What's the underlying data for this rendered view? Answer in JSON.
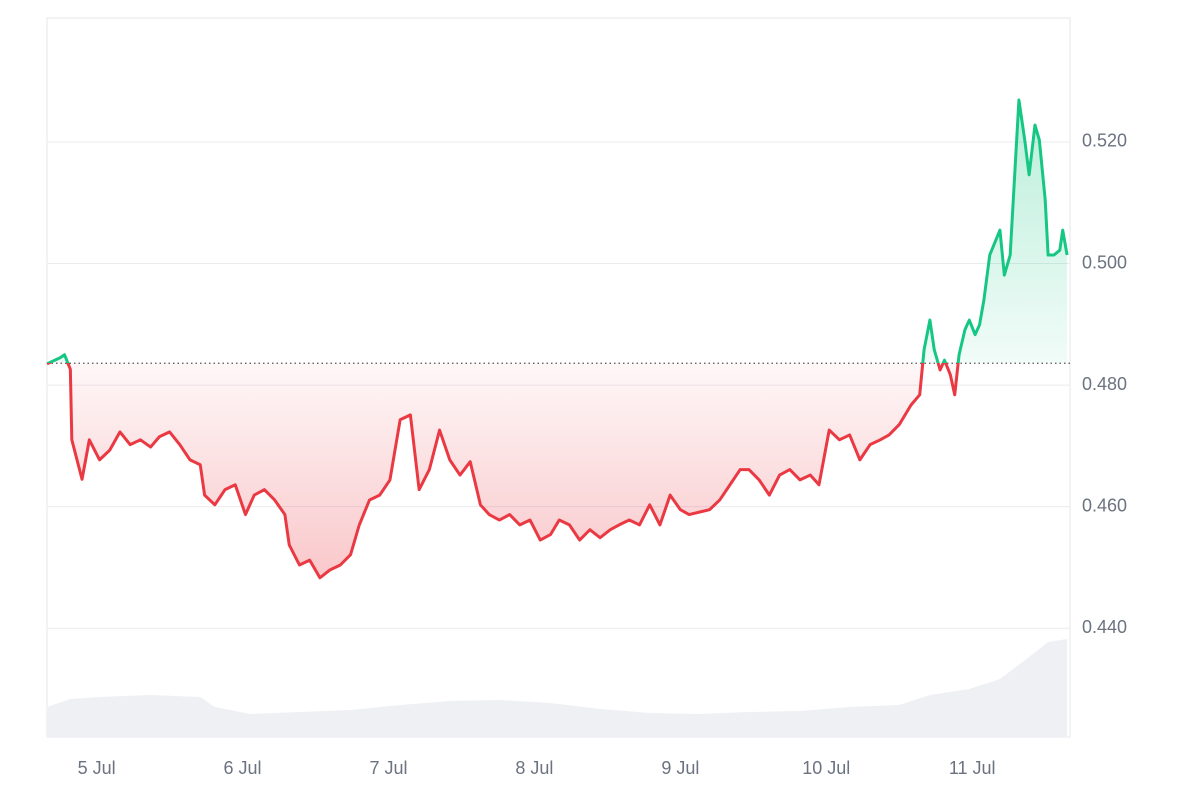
{
  "chart_data": {
    "type": "line",
    "x": [
      4.66,
      4.75,
      4.78,
      4.82,
      4.83,
      4.9,
      4.95,
      5.02,
      5.09,
      5.16,
      5.23,
      5.3,
      5.37,
      5.43,
      5.5,
      5.57,
      5.64,
      5.71,
      5.74,
      5.81,
      5.88,
      5.95,
      6.02,
      6.08,
      6.15,
      6.22,
      6.29,
      6.32,
      6.39,
      6.46,
      6.53,
      6.6,
      6.67,
      6.74,
      6.8,
      6.87,
      6.94,
      7.01,
      7.08,
      7.15,
      7.21,
      7.28,
      7.35,
      7.42,
      7.49,
      7.56,
      7.63,
      7.69,
      7.76,
      7.83,
      7.9,
      7.97,
      8.04,
      8.11,
      8.17,
      8.24,
      8.31,
      8.38,
      8.45,
      8.52,
      8.58,
      8.65,
      8.72,
      8.79,
      8.86,
      8.93,
      9.0,
      9.06,
      9.13,
      9.2,
      9.27,
      9.34,
      9.41,
      9.47,
      9.54,
      9.61,
      9.68,
      9.75,
      9.82,
      9.89,
      9.95,
      10.02,
      10.09,
      10.16,
      10.23,
      10.3,
      10.37,
      10.43,
      10.5,
      10.58,
      10.64,
      10.67,
      10.71,
      10.74,
      10.78,
      10.81,
      10.85,
      10.88,
      10.91,
      10.95,
      10.98,
      11.02,
      11.05,
      11.08,
      11.12,
      11.19,
      11.22,
      11.26,
      11.32,
      11.36,
      11.39,
      11.43,
      11.46,
      11.5,
      11.52,
      11.56,
      11.6,
      11.62,
      11.65
    ],
    "values": [
      0.4835,
      0.4845,
      0.485,
      0.4826,
      0.471,
      0.4645,
      0.471,
      0.4677,
      0.4693,
      0.4723,
      0.4702,
      0.471,
      0.4698,
      0.4715,
      0.4723,
      0.4702,
      0.4677,
      0.4669,
      0.4619,
      0.4603,
      0.4628,
      0.4636,
      0.4587,
      0.4619,
      0.4628,
      0.4611,
      0.4587,
      0.4537,
      0.4504,
      0.4512,
      0.4483,
      0.4496,
      0.4504,
      0.4521,
      0.457,
      0.4611,
      0.4619,
      0.4644,
      0.4743,
      0.4751,
      0.4628,
      0.4661,
      0.4726,
      0.4677,
      0.4652,
      0.4674,
      0.4603,
      0.4587,
      0.4578,
      0.4587,
      0.457,
      0.4578,
      0.4545,
      0.4554,
      0.4578,
      0.457,
      0.4545,
      0.4562,
      0.4549,
      0.4562,
      0.457,
      0.4578,
      0.457,
      0.4603,
      0.457,
      0.4619,
      0.4595,
      0.4587,
      0.4591,
      0.4595,
      0.4611,
      0.4636,
      0.4661,
      0.4661,
      0.4644,
      0.4619,
      0.4652,
      0.4661,
      0.4644,
      0.4652,
      0.4636,
      0.4726,
      0.471,
      0.4718,
      0.4677,
      0.4702,
      0.471,
      0.4718,
      0.4735,
      0.4767,
      0.4784,
      0.4858,
      0.4907,
      0.4858,
      0.4825,
      0.4841,
      0.4817,
      0.4784,
      0.485,
      0.4891,
      0.4907,
      0.4883,
      0.4899,
      0.494,
      0.5014,
      0.5055,
      0.4981,
      0.5014,
      0.5269,
      0.5203,
      0.5146,
      0.5228,
      0.5203,
      0.5105,
      0.5014,
      0.5014,
      0.5022,
      0.5055,
      0.5014
    ],
    "baseline": 0.4836,
    "up_color": "#16c784",
    "down_color": "#ea3943",
    "xlim": [
      4.66,
      11.67
    ],
    "xticks": [
      {
        "value": 5,
        "label": "5 Jul"
      },
      {
        "value": 6,
        "label": "6 Jul"
      },
      {
        "value": 7,
        "label": "7 Jul"
      },
      {
        "value": 8,
        "label": "8 Jul"
      },
      {
        "value": 9,
        "label": "9 Jul"
      },
      {
        "value": 10,
        "label": "10 Jul"
      },
      {
        "value": 11,
        "label": "11 Jul"
      }
    ],
    "ylim": [
      0.4221,
      0.5404
    ],
    "yticks": [
      {
        "value": 0.44,
        "label": "0.440"
      },
      {
        "value": 0.46,
        "label": "0.460"
      },
      {
        "value": 0.48,
        "label": "0.480"
      },
      {
        "value": 0.5,
        "label": "0.500"
      },
      {
        "value": 0.52,
        "label": "0.520"
      }
    ],
    "grid": true,
    "volume": {
      "x": [
        4.66,
        4.82,
        5.02,
        5.37,
        5.71,
        5.81,
        6.05,
        6.39,
        6.74,
        7.08,
        7.42,
        7.76,
        8.11,
        8.45,
        8.79,
        9.13,
        9.47,
        9.82,
        10.16,
        10.5,
        10.71,
        10.98,
        11.19,
        11.39,
        11.52,
        11.65
      ],
      "values": [
        30,
        38,
        40,
        42,
        40,
        30,
        23,
        25,
        27,
        32,
        36,
        37,
        34,
        28,
        24,
        23,
        25,
        26,
        30,
        32,
        42,
        48,
        58,
        80,
        95,
        98
      ],
      "ylim": [
        0,
        100
      ],
      "color": "#eef0f3"
    }
  }
}
